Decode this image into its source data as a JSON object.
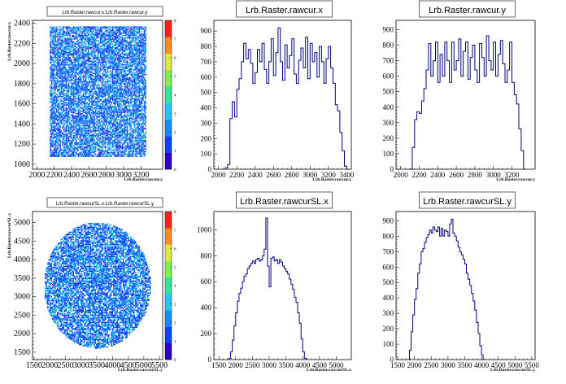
{
  "chart_data": [
    {
      "type": "heatmap",
      "title": "Lrb.Raster.rawcur.x:Lrb.Raster.rawcur.y",
      "xlabel": "Lrb.Raster.rawcur.y",
      "ylabel": "Lrb.Raster.rawcur.x",
      "x_ticks": [
        "2000",
        "2200",
        "2400",
        "2600",
        "2800",
        "3000",
        "3200"
      ],
      "y_ticks": [
        "1000",
        "1200",
        "1400",
        "1600",
        "1800",
        "2000",
        "2200",
        "2400"
      ],
      "z_ticks": [
        "0",
        "1",
        "2",
        "3",
        "4",
        "5",
        "6",
        "7",
        "8"
      ],
      "xlim": [
        1950,
        3450
      ],
      "ylim": [
        950,
        2430
      ],
      "zlim": [
        0,
        8
      ],
      "region": {
        "shape": "rectangle",
        "x": [
          2150,
          3250
        ],
        "y": [
          1080,
          2370
        ]
      },
      "colorscale": [
        "#2b00c8",
        "#0b43ff",
        "#0f8cff",
        "#1ec8ff",
        "#2ee89a",
        "#7df04a",
        "#e0e83a",
        "#ff8a1e",
        "#ff2020"
      ]
    },
    {
      "type": "bar",
      "title": "Lrb.Raster.rawcur.x",
      "xlabel": "Lrb.Raster.rawcur.x",
      "ylabel": "",
      "x_ticks": [
        "2000",
        "2200",
        "2400",
        "2600",
        "2800",
        "3000",
        "3200",
        "3400"
      ],
      "y_ticks": [
        "0",
        "100",
        "200",
        "300",
        "400",
        "500",
        "600",
        "700",
        "800",
        "900"
      ],
      "xlim": [
        1950,
        3450
      ],
      "ylim": [
        0,
        970
      ],
      "bin_start": 2050,
      "bin_width": 25,
      "values": [
        0,
        10,
        30,
        330,
        440,
        340,
        520,
        590,
        700,
        820,
        720,
        780,
        690,
        560,
        630,
        780,
        700,
        820,
        650,
        560,
        700,
        850,
        610,
        760,
        920,
        700,
        580,
        810,
        660,
        740,
        850,
        620,
        560,
        710,
        790,
        660,
        860,
        590,
        820,
        700,
        760,
        600,
        800,
        700,
        560,
        720,
        800,
        660,
        560,
        420,
        380,
        240,
        120,
        20,
        0
      ]
    },
    {
      "type": "bar",
      "title": "Lrb.Raster.rawcur.y",
      "xlabel": "Lrb.Raster.rawcur.y",
      "ylabel": "",
      "x_ticks": [
        "2000",
        "2200",
        "2400",
        "2600",
        "2800",
        "3000",
        "3200"
      ],
      "y_ticks": [
        "0",
        "100",
        "200",
        "300",
        "400",
        "500",
        "600",
        "700",
        "800",
        "900"
      ],
      "xlim": [
        1950,
        3450
      ],
      "ylim": [
        0,
        960
      ],
      "bin_start": 2100,
      "bin_width": 25,
      "values": [
        0,
        140,
        320,
        370,
        360,
        440,
        520,
        640,
        810,
        600,
        700,
        820,
        560,
        740,
        600,
        820,
        700,
        560,
        820,
        640,
        700,
        840,
        600,
        760,
        820,
        580,
        720,
        800,
        640,
        560,
        810,
        720,
        600,
        860,
        700,
        640,
        820,
        600,
        740,
        830,
        680,
        560,
        640,
        820,
        560,
        480,
        420,
        260,
        120,
        0
      ]
    },
    {
      "type": "heatmap",
      "title": "Lrb.Raster.rawcurSL.x:Lrb.Raster.rawcurSL.y",
      "xlabel": "Lrb.Raster.rawcurSL.y",
      "ylabel": "Lrb.Raster.rawcurSL.x",
      "x_ticks": [
        "1500",
        "2000",
        "2500",
        "3000",
        "3500",
        "4000",
        "4500",
        "5000",
        "5500"
      ],
      "y_ticks": [
        "1500",
        "2000",
        "2500",
        "3000",
        "3500",
        "4000",
        "4500",
        "5000"
      ],
      "z_ticks": [
        "0",
        "1",
        "2",
        "3",
        "4",
        "5",
        "6",
        "7",
        "8"
      ],
      "xlim": [
        1450,
        5600
      ],
      "ylim": [
        1300,
        5300
      ],
      "zlim": [
        0,
        8
      ],
      "region": {
        "shape": "circle",
        "center": [
          3500,
          3320
        ],
        "radius": 1700
      },
      "colorscale": [
        "#2b00c8",
        "#0b43ff",
        "#0f8cff",
        "#1ec8ff",
        "#2ee89a",
        "#7df04a",
        "#e0e83a",
        "#ff8a1e",
        "#ff2020"
      ]
    },
    {
      "type": "bar",
      "title": "Lrb.Raster.rawcurSL.x",
      "xlabel": "Lrb.Raster.rawcurSL.x",
      "ylabel": "",
      "x_ticks": [
        "1500",
        "2000",
        "2500",
        "3000",
        "3500",
        "4000",
        "4500",
        "5000"
      ],
      "y_ticks": [
        "0",
        "200",
        "400",
        "600",
        "800",
        "1000"
      ],
      "xlim": [
        1350,
        5450
      ],
      "ylim": [
        0,
        1140
      ],
      "bin_start": 1750,
      "bin_width": 50,
      "values": [
        0,
        10,
        60,
        150,
        260,
        360,
        450,
        510,
        550,
        600,
        640,
        660,
        700,
        720,
        740,
        760,
        740,
        770,
        780,
        760,
        770,
        800,
        850,
        1090,
        720,
        560,
        780,
        790,
        760,
        770,
        740,
        770,
        750,
        720,
        700,
        680,
        660,
        620,
        580,
        540,
        480,
        440,
        360,
        280,
        160,
        60,
        10,
        0
      ]
    },
    {
      "type": "bar",
      "title": "Lrb.Raster.rawcurSL.y",
      "xlabel": "Lrb.Raster.rawcurSL.y",
      "ylabel": "",
      "x_ticks": [
        "1500",
        "2000",
        "2500",
        "3000",
        "3500",
        "4000",
        "4500",
        "5000",
        "5500"
      ],
      "y_ticks": [
        "0",
        "100",
        "200",
        "300",
        "400",
        "500",
        "600",
        "700",
        "800",
        "900"
      ],
      "xlim": [
        1450,
        5600
      ],
      "ylim": [
        0,
        960
      ],
      "bin_start": 1800,
      "bin_width": 50,
      "values": [
        0,
        60,
        180,
        290,
        390,
        460,
        560,
        620,
        700,
        720,
        760,
        790,
        810,
        840,
        820,
        860,
        840,
        830,
        860,
        800,
        850,
        800,
        840,
        830,
        800,
        880,
        910,
        820,
        800,
        770,
        730,
        700,
        680,
        650,
        620,
        560,
        520,
        480,
        430,
        380,
        320,
        240,
        170,
        90,
        30,
        0
      ]
    }
  ]
}
